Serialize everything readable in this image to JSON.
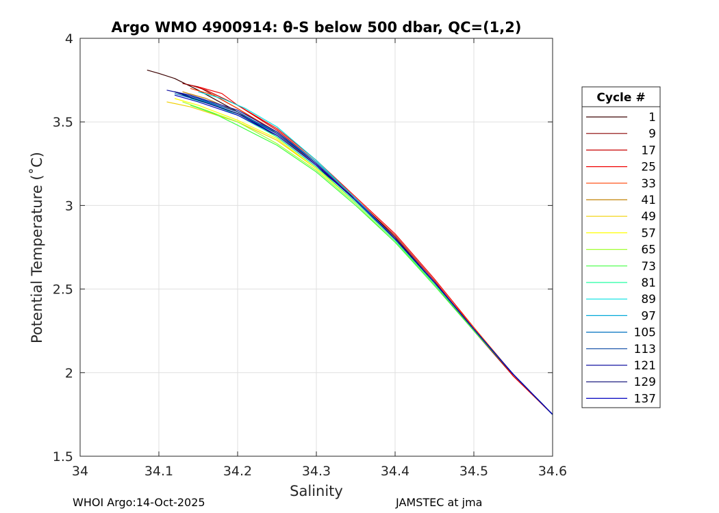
{
  "chart_data": {
    "type": "line",
    "title": "Argo WMO 4900914: θ-S below 500 dbar,  QC=(1,2)",
    "xlabel": "Salinity",
    "ylabel": "Potential Temperature (˚C)",
    "xlim": [
      34.0,
      34.6
    ],
    "ylim": [
      1.5,
      4.0
    ],
    "x_ticks": [
      34.0,
      34.1,
      34.2,
      34.3,
      34.4,
      34.5,
      34.6
    ],
    "x_tick_labels": [
      "34",
      "34.1",
      "34.2",
      "34.3",
      "34.4",
      "34.5",
      "34.6"
    ],
    "y_ticks": [
      1.5,
      2.0,
      2.5,
      3.0,
      3.5,
      4.0
    ],
    "y_tick_labels": [
      "1.5",
      "2",
      "2.5",
      "3",
      "3.5",
      "4"
    ],
    "grid": true,
    "legend": {
      "title": "Cycle #",
      "placement": "right-outside",
      "entries": [
        {
          "label": "1",
          "color": "#3a0000"
        },
        {
          "label": "9",
          "color": "#8a0000"
        },
        {
          "label": "17",
          "color": "#c80000"
        },
        {
          "label": "25",
          "color": "#f00000"
        },
        {
          "label": "33",
          "color": "#ff4000"
        },
        {
          "label": "41",
          "color": "#c08000"
        },
        {
          "label": "49",
          "color": "#f0d000"
        },
        {
          "label": "57",
          "color": "#ffff00"
        },
        {
          "label": "65",
          "color": "#a0ff30"
        },
        {
          "label": "73",
          "color": "#40ff40"
        },
        {
          "label": "81",
          "color": "#20ffa0"
        },
        {
          "label": "89",
          "color": "#00e0e0"
        },
        {
          "label": "97",
          "color": "#00a8d8"
        },
        {
          "label": "105",
          "color": "#0070c0"
        },
        {
          "label": "113",
          "color": "#0040a0"
        },
        {
          "label": "121",
          "color": "#1010a0"
        },
        {
          "label": "129",
          "color": "#000070"
        },
        {
          "label": "137",
          "color": "#0000c0"
        }
      ]
    },
    "series": [
      {
        "color": "#3a0000",
        "x": [
          34.085,
          34.1,
          34.12,
          34.15,
          34.2,
          34.25,
          34.3,
          34.35,
          34.4,
          34.45,
          34.5,
          34.55,
          34.6
        ],
        "y": [
          3.81,
          3.79,
          3.76,
          3.69,
          3.56,
          3.41,
          3.23,
          3.04,
          2.81,
          2.54,
          2.26,
          1.99,
          1.75
        ]
      },
      {
        "color": "#8a0000",
        "x": [
          34.13,
          34.15,
          34.2,
          34.25,
          34.3,
          34.35,
          34.4,
          34.45,
          34.5,
          34.55,
          34.6
        ],
        "y": [
          3.73,
          3.71,
          3.58,
          3.43,
          3.24,
          3.03,
          2.8,
          2.53,
          2.25,
          1.98,
          1.75
        ]
      },
      {
        "color": "#c80000",
        "x": [
          34.14,
          34.16,
          34.2,
          34.25,
          34.3,
          34.35,
          34.4,
          34.45,
          34.5,
          34.55,
          34.6
        ],
        "y": [
          3.72,
          3.69,
          3.6,
          3.45,
          3.26,
          3.04,
          2.82,
          2.55,
          2.26,
          1.98,
          1.75
        ]
      },
      {
        "color": "#f00000",
        "x": [
          34.15,
          34.18,
          34.2,
          34.25,
          34.3,
          34.35,
          34.4,
          34.45,
          34.5,
          34.55,
          34.6
        ],
        "y": [
          3.71,
          3.67,
          3.6,
          3.46,
          3.27,
          3.05,
          2.83,
          2.56,
          2.27,
          1.98,
          1.75
        ]
      },
      {
        "color": "#ff4000",
        "x": [
          34.14,
          34.17,
          34.2,
          34.25,
          34.3,
          34.35,
          34.4,
          34.45,
          34.5,
          34.55,
          34.6
        ],
        "y": [
          3.7,
          3.66,
          3.58,
          3.44,
          3.25,
          3.04,
          2.8,
          2.54,
          2.27,
          1.99,
          1.75
        ]
      },
      {
        "color": "#c08000",
        "x": [
          34.13,
          34.16,
          34.2,
          34.25,
          34.3,
          34.35,
          34.4,
          34.45,
          34.5,
          34.55,
          34.6
        ],
        "y": [
          3.68,
          3.64,
          3.56,
          3.43,
          3.24,
          3.03,
          2.8,
          2.54,
          2.26,
          1.99,
          1.75
        ]
      },
      {
        "color": "#f0d000",
        "x": [
          34.11,
          34.14,
          34.2,
          34.25,
          34.3,
          34.35,
          34.4,
          34.45,
          34.5,
          34.55,
          34.6
        ],
        "y": [
          3.62,
          3.59,
          3.5,
          3.39,
          3.22,
          3.02,
          2.79,
          2.53,
          2.26,
          1.99,
          1.75
        ]
      },
      {
        "color": "#ffff00",
        "x": [
          34.12,
          34.15,
          34.2,
          34.25,
          34.3,
          34.35,
          34.4,
          34.45,
          34.5,
          34.55,
          34.6
        ],
        "y": [
          3.64,
          3.6,
          3.51,
          3.4,
          3.22,
          3.02,
          2.79,
          2.53,
          2.26,
          1.99,
          1.75
        ]
      },
      {
        "color": "#a0ff30",
        "x": [
          34.13,
          34.16,
          34.2,
          34.25,
          34.3,
          34.35,
          34.4,
          34.45,
          34.5,
          34.55,
          34.6
        ],
        "y": [
          3.62,
          3.57,
          3.5,
          3.37,
          3.21,
          3.01,
          2.78,
          2.53,
          2.26,
          1.99,
          1.75
        ]
      },
      {
        "color": "#40ff40",
        "x": [
          34.14,
          34.17,
          34.2,
          34.25,
          34.3,
          34.35,
          34.4,
          34.45,
          34.5,
          34.55,
          34.6
        ],
        "y": [
          3.6,
          3.55,
          3.48,
          3.36,
          3.2,
          3.0,
          2.78,
          2.52,
          2.25,
          1.99,
          1.75
        ]
      },
      {
        "color": "#20ffa0",
        "x": [
          34.14,
          34.17,
          34.2,
          34.25,
          34.3,
          34.35,
          34.4,
          34.45,
          34.5,
          34.55,
          34.6
        ],
        "y": [
          3.64,
          3.6,
          3.54,
          3.41,
          3.23,
          3.02,
          2.79,
          2.53,
          2.26,
          1.99,
          1.75
        ]
      },
      {
        "color": "#00e0e0",
        "x": [
          34.15,
          34.18,
          34.21,
          34.25,
          34.3,
          34.35,
          34.4,
          34.45,
          34.5,
          34.55,
          34.6
        ],
        "y": [
          3.68,
          3.64,
          3.58,
          3.47,
          3.27,
          3.04,
          2.8,
          2.54,
          2.26,
          1.99,
          1.75
        ]
      },
      {
        "color": "#00a8d8",
        "x": [
          34.13,
          34.16,
          34.2,
          34.25,
          34.3,
          34.35,
          34.4,
          34.45,
          34.5,
          34.55,
          34.6
        ],
        "y": [
          3.66,
          3.62,
          3.55,
          3.44,
          3.26,
          3.04,
          2.8,
          2.54,
          2.26,
          1.99,
          1.75
        ]
      },
      {
        "color": "#0070c0",
        "x": [
          34.12,
          34.15,
          34.2,
          34.25,
          34.3,
          34.35,
          34.4,
          34.45,
          34.5,
          34.55,
          34.6
        ],
        "y": [
          3.67,
          3.63,
          3.55,
          3.43,
          3.25,
          3.03,
          2.8,
          2.54,
          2.26,
          1.99,
          1.75
        ]
      },
      {
        "color": "#0040a0",
        "x": [
          34.12,
          34.15,
          34.2,
          34.25,
          34.3,
          34.35,
          34.4,
          34.45,
          34.5,
          34.55,
          34.6
        ],
        "y": [
          3.68,
          3.64,
          3.56,
          3.43,
          3.25,
          3.03,
          2.8,
          2.54,
          2.26,
          1.99,
          1.75
        ]
      },
      {
        "color": "#1010a0",
        "x": [
          34.11,
          34.14,
          34.2,
          34.25,
          34.3,
          34.35,
          34.4,
          34.45,
          34.5,
          34.55,
          34.6
        ],
        "y": [
          3.69,
          3.66,
          3.57,
          3.44,
          3.25,
          3.03,
          2.8,
          2.54,
          2.26,
          1.99,
          1.75
        ]
      },
      {
        "color": "#000070",
        "x": [
          34.12,
          34.15,
          34.2,
          34.25,
          34.3,
          34.35,
          34.4,
          34.45,
          34.5,
          34.55,
          34.6
        ],
        "y": [
          3.68,
          3.63,
          3.55,
          3.42,
          3.24,
          3.03,
          2.8,
          2.54,
          2.26,
          1.99,
          1.75
        ]
      },
      {
        "color": "#0000c0",
        "x": [
          34.12,
          34.15,
          34.2,
          34.25,
          34.3,
          34.35,
          34.4,
          34.45,
          34.5,
          34.55,
          34.6
        ],
        "y": [
          3.66,
          3.62,
          3.54,
          3.42,
          3.24,
          3.03,
          2.8,
          2.54,
          2.26,
          1.99,
          1.75
        ]
      }
    ]
  },
  "footer": {
    "left": "WHOI Argo:14-Oct-2025",
    "right": "JAMSTEC at jma"
  }
}
